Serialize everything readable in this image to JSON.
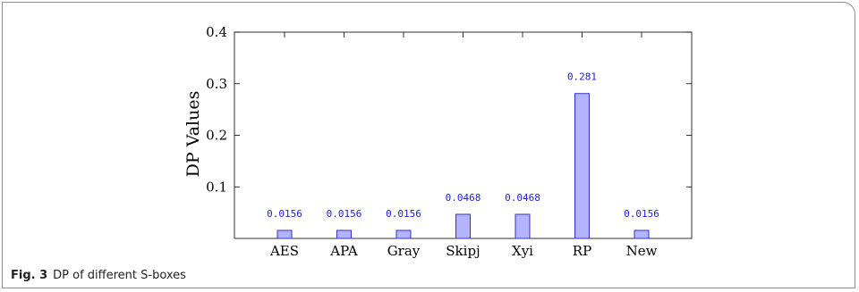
{
  "chart_data": {
    "type": "bar",
    "categories": [
      "AES",
      "APA",
      "Gray",
      "Skipj",
      "Xyi",
      "RP",
      "New"
    ],
    "values": [
      0.0156,
      0.0156,
      0.0156,
      0.0468,
      0.0468,
      0.281,
      0.0156
    ],
    "value_labels": [
      "0.0156",
      "0.0156",
      "0.0156",
      "0.0468",
      "0.0468",
      "0.281",
      "0.0156"
    ],
    "ylabel": "DP Values",
    "ylim": [
      0,
      0.4
    ],
    "yticks": [
      0.1,
      0.2,
      0.3,
      0.4
    ],
    "ytick_labels": [
      "0.1",
      "0.2",
      "0.3",
      "0.4"
    ],
    "bar_fill": "#b3b3ff",
    "bar_stroke": "#3333cc",
    "label_color": "#2020e0",
    "grid": false
  },
  "caption": {
    "label": "Fig. 3",
    "text": "DP of different S-boxes"
  }
}
